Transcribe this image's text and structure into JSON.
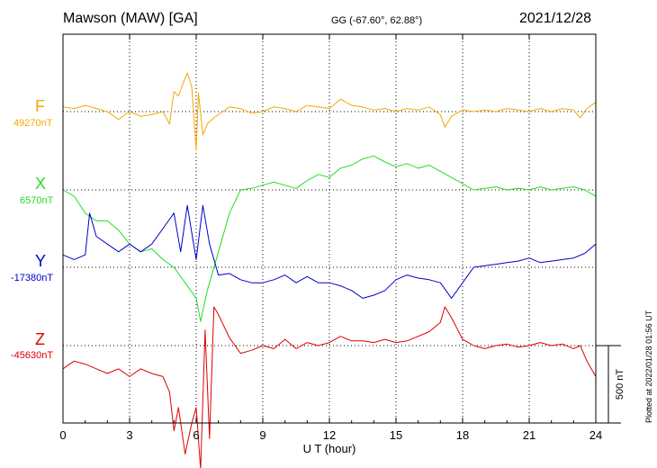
{
  "header": {
    "station": "Mawson (MAW)  [GA]",
    "coords": "GG (-67.60°,  62.88°)",
    "date": "2021/12/28"
  },
  "plotted_note": "Plotted at 2022/01/28 01:56 UT",
  "components": [
    {
      "letter": "F",
      "baseline": "49270nT",
      "color": "#f5a800"
    },
    {
      "letter": "X",
      "baseline": "6570nT",
      "color": "#22dd22"
    },
    {
      "letter": "Y",
      "baseline": "-17380nT",
      "color": "#0000cc"
    },
    {
      "letter": "Z",
      "baseline": "-45630nT",
      "color": "#dd0000"
    }
  ],
  "scale_bar": {
    "label": "500 nT",
    "value_nT": 500
  },
  "chart_data": {
    "type": "line",
    "xlabel": "U T (hour)",
    "xlim": [
      0,
      24
    ],
    "xticks": [
      "0",
      "3",
      "6",
      "9",
      "12",
      "15",
      "18",
      "21",
      "24"
    ],
    "y_units": "nT offset from baseline",
    "grid": true,
    "series": [
      {
        "name": "F",
        "baseline_nT": 49270,
        "color": "#f5a800",
        "x": [
          0,
          0.5,
          1,
          1.5,
          2,
          2.5,
          3,
          3.5,
          4,
          4.5,
          4.8,
          5,
          5.2,
          5.4,
          5.6,
          5.8,
          6,
          6.1,
          6.3,
          6.5,
          6.8,
          7,
          7.5,
          8,
          8.5,
          9,
          9.5,
          10,
          10.5,
          11,
          11.5,
          12,
          12.5,
          13,
          13.5,
          14,
          14.5,
          15,
          15.5,
          16,
          16.5,
          17,
          17.2,
          17.5,
          18,
          18.5,
          19,
          19.5,
          20,
          20.5,
          21,
          21.5,
          22,
          22.5,
          23,
          23.3,
          23.6,
          24
        ],
        "y": [
          30,
          20,
          40,
          20,
          0,
          -50,
          0,
          -30,
          -20,
          0,
          -80,
          130,
          100,
          180,
          250,
          160,
          -250,
          120,
          -150,
          -80,
          -40,
          -20,
          30,
          20,
          -10,
          0,
          30,
          20,
          0,
          40,
          30,
          20,
          80,
          40,
          30,
          10,
          20,
          0,
          20,
          10,
          30,
          -20,
          -100,
          -30,
          10,
          0,
          10,
          0,
          20,
          10,
          0,
          20,
          0,
          20,
          10,
          -40,
          20,
          60
        ]
      },
      {
        "name": "X",
        "baseline_nT": 6570,
        "color": "#22dd22",
        "x": [
          0,
          0.5,
          1,
          1.5,
          2,
          2.5,
          3,
          3.5,
          4,
          4.5,
          5,
          5.5,
          6,
          6.2,
          6.5,
          7,
          7.5,
          8,
          8.5,
          9,
          9.5,
          10,
          10.5,
          11,
          11.5,
          12,
          12.5,
          13,
          13.5,
          14,
          14.5,
          15,
          15.5,
          16,
          16.5,
          17,
          17.5,
          18,
          18.5,
          19,
          19.5,
          20,
          20.5,
          21,
          21.5,
          22,
          22.5,
          23,
          23.5,
          24
        ],
        "y": [
          0,
          -40,
          -150,
          -200,
          -200,
          -260,
          -350,
          -400,
          -380,
          -450,
          -500,
          -600,
          -700,
          -850,
          -650,
          -400,
          -150,
          0,
          10,
          30,
          50,
          30,
          10,
          60,
          100,
          80,
          140,
          160,
          200,
          220,
          180,
          150,
          170,
          140,
          160,
          120,
          80,
          40,
          0,
          10,
          20,
          0,
          10,
          0,
          20,
          0,
          10,
          20,
          0,
          -40
        ]
      },
      {
        "name": "Y",
        "baseline_nT": -17380,
        "color": "#0000cc",
        "x": [
          0,
          0.5,
          1,
          1.2,
          1.5,
          2,
          2.5,
          3,
          3.5,
          4,
          4.5,
          5,
          5.3,
          5.6,
          6,
          6.3,
          6.6,
          7,
          7.5,
          8,
          8.5,
          9,
          9.5,
          10,
          10.5,
          11,
          11.5,
          12,
          12.5,
          13,
          13.5,
          14,
          14.5,
          15,
          15.5,
          16,
          16.5,
          17,
          17.5,
          18,
          18.5,
          19,
          19.5,
          20,
          20.5,
          21,
          21.5,
          22,
          22.5,
          23,
          23.5,
          24
        ],
        "y": [
          80,
          50,
          80,
          350,
          200,
          150,
          100,
          150,
          100,
          150,
          250,
          350,
          100,
          400,
          50,
          400,
          150,
          -50,
          -40,
          -80,
          -100,
          -100,
          -80,
          -50,
          -100,
          -60,
          -100,
          -100,
          -120,
          -150,
          -200,
          -180,
          -150,
          -80,
          -50,
          -70,
          -80,
          -100,
          -200,
          -100,
          0,
          10,
          20,
          30,
          40,
          60,
          30,
          40,
          50,
          60,
          90,
          150
        ]
      },
      {
        "name": "Z",
        "baseline_nT": -45630,
        "color": "#dd0000",
        "x": [
          0,
          0.5,
          1,
          1.5,
          2,
          2.5,
          3,
          3.5,
          4,
          4.5,
          4.8,
          5,
          5.2,
          5.5,
          5.8,
          6,
          6.2,
          6.4,
          6.6,
          6.8,
          7,
          7.5,
          8,
          8.5,
          9,
          9.5,
          10,
          10.5,
          11,
          11.5,
          12,
          12.5,
          13,
          13.5,
          14,
          14.5,
          15,
          15.5,
          16,
          16.5,
          17,
          17.2,
          17.5,
          18,
          18.5,
          19,
          19.5,
          20,
          20.5,
          21,
          21.5,
          22,
          22.5,
          23,
          23.3,
          23.6,
          24
        ],
        "y": [
          -150,
          -100,
          -120,
          -150,
          -180,
          -150,
          -200,
          -150,
          -180,
          -200,
          -300,
          -550,
          -400,
          -700,
          -500,
          -400,
          -800,
          100,
          -600,
          250,
          200,
          50,
          -50,
          -30,
          0,
          -20,
          40,
          -20,
          20,
          0,
          20,
          60,
          30,
          30,
          20,
          40,
          20,
          30,
          60,
          90,
          150,
          250,
          180,
          40,
          0,
          -20,
          0,
          10,
          -10,
          0,
          20,
          0,
          10,
          -20,
          0,
          -100,
          -200
        ]
      }
    ]
  }
}
